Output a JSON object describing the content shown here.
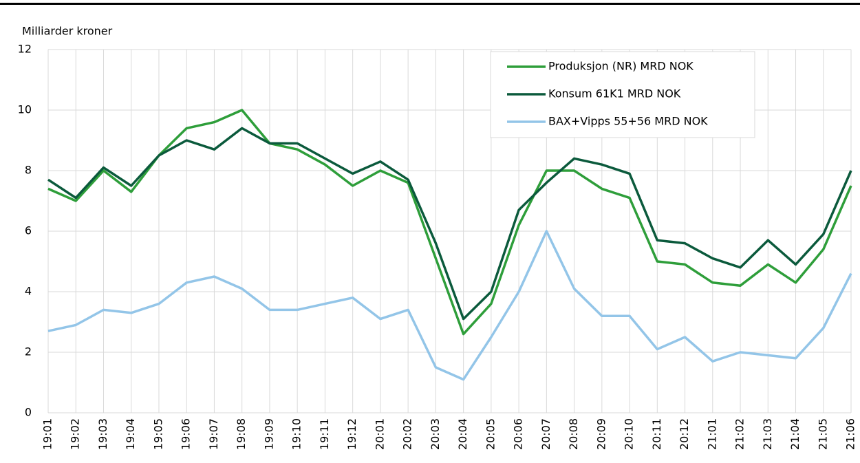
{
  "chart_data": {
    "type": "line",
    "y_label": "Milliarder kroner",
    "categories": [
      "19:01",
      "19:02",
      "19:03",
      "19:04",
      "19:05",
      "19:06",
      "19:07",
      "19:08",
      "19:09",
      "19:10",
      "19:11",
      "19:12",
      "20:01",
      "20:02",
      "20:03",
      "20:04",
      "20:05",
      "20:06",
      "20:07",
      "20:08",
      "20:09",
      "20:10",
      "20:11",
      "20:12",
      "21:01",
      "21:02",
      "21:03",
      "21:04",
      "21:05",
      "21:06"
    ],
    "series": [
      {
        "name": "Produksjon (NR) MRD NOK",
        "color": "#2e9e3a",
        "values": [
          7.4,
          7.0,
          8.0,
          7.3,
          8.5,
          9.4,
          9.6,
          10.0,
          8.9,
          8.7,
          8.2,
          7.5,
          8.0,
          7.6,
          5.1,
          2.6,
          3.6,
          6.2,
          8.0,
          8.0,
          7.4,
          7.1,
          5.0,
          4.9,
          4.3,
          4.2,
          4.9,
          4.3,
          5.4,
          7.5
        ]
      },
      {
        "name": "Konsum 61K1 MRD NOK",
        "color": "#0b5a3c",
        "values": [
          7.7,
          7.1,
          8.1,
          7.5,
          8.5,
          9.0,
          8.7,
          9.4,
          8.9,
          8.9,
          8.4,
          7.9,
          8.3,
          7.7,
          5.6,
          3.1,
          4.0,
          6.7,
          7.6,
          8.4,
          8.2,
          7.9,
          5.7,
          5.6,
          5.1,
          4.8,
          5.7,
          4.9,
          5.9,
          8.0
        ]
      },
      {
        "name": "BAX+Vipps 55+56 MRD NOK",
        "color": "#93c5e8",
        "values": [
          2.7,
          2.9,
          3.4,
          3.3,
          3.6,
          4.3,
          4.5,
          4.1,
          3.4,
          3.4,
          3.6,
          3.8,
          3.1,
          3.4,
          1.5,
          1.1,
          2.5,
          4.0,
          6.0,
          4.1,
          3.2,
          3.2,
          2.1,
          2.5,
          1.7,
          2.0,
          1.9,
          1.8,
          2.8,
          4.6
        ]
      }
    ],
    "ylim": [
      0,
      12
    ],
    "yticks": [
      0,
      2,
      4,
      6,
      8,
      10,
      12
    ],
    "grid": true,
    "legend": "top-right"
  }
}
